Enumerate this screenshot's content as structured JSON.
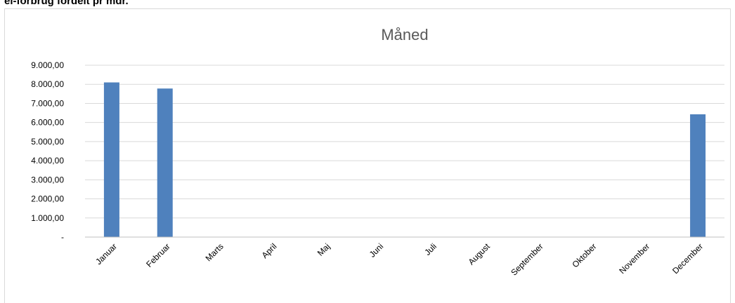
{
  "page": {
    "header_text": "el-forbrug fordelt pr mdr."
  },
  "colors": {
    "bar": "#4f81bd",
    "gridline": "#d9d9d9",
    "axis": "#bfbfbf",
    "title": "#595959"
  },
  "chart_data": {
    "type": "bar",
    "title": "Måned",
    "xlabel": "",
    "ylabel": "",
    "categories": [
      "Januar",
      "Februar",
      "Marts",
      "April",
      "Maj",
      "Juni",
      "Juli",
      "August",
      "September",
      "Oktober",
      "November",
      "December"
    ],
    "series": [
      {
        "values": [
          8100,
          7780,
          0,
          0,
          0,
          0,
          0,
          0,
          0,
          0,
          0,
          6430
        ]
      }
    ],
    "ylim": [
      0,
      9000
    ],
    "yticks": [
      0,
      1000,
      2000,
      3000,
      4000,
      5000,
      6000,
      7000,
      8000,
      9000
    ],
    "ytick_labels": [
      "-",
      "1.000,00",
      "2.000,00",
      "3.000,00",
      "4.000,00",
      "5.000,00",
      "6.000,00",
      "7.000,00",
      "8.000,00",
      "9.000,00"
    ],
    "grid": true,
    "legend": "none"
  }
}
